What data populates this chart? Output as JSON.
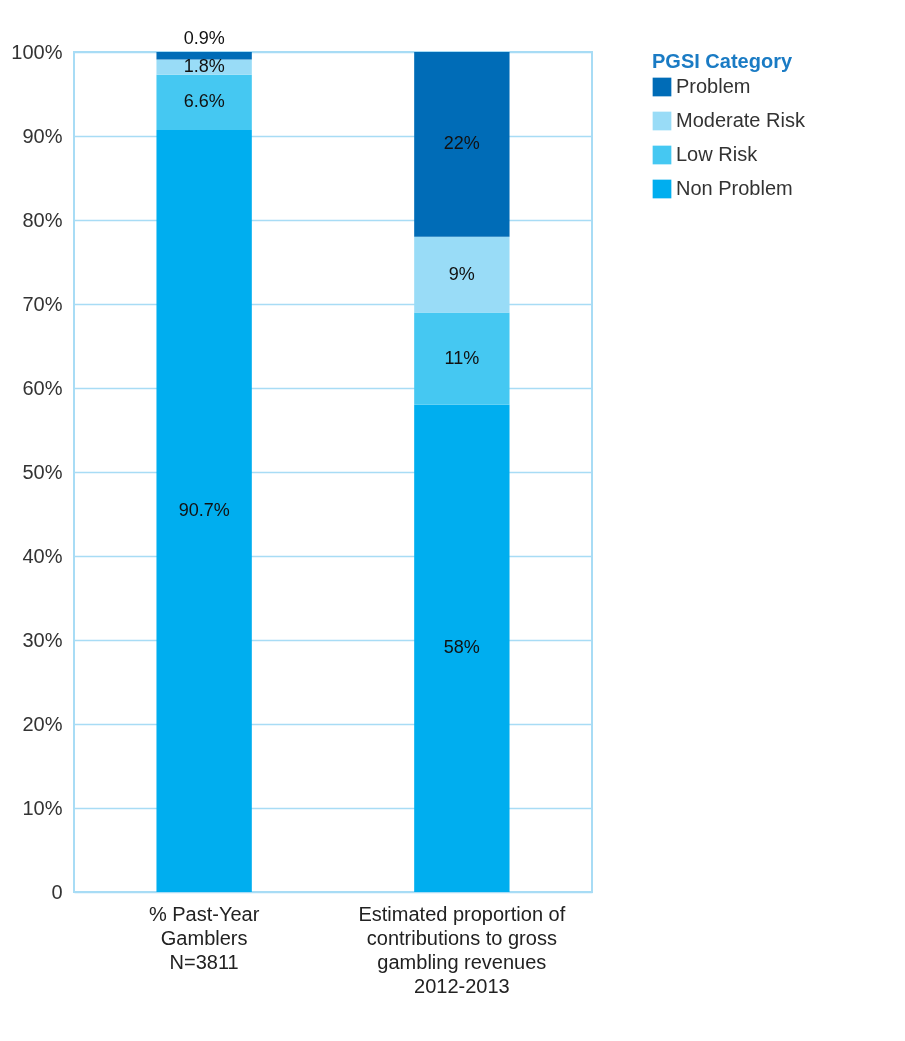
{
  "chart_data": {
    "type": "bar",
    "stacked": true,
    "categories": [
      "% Past-Year\nGamblers\nN=3811",
      "Estimated proportion of\ncontributions to gross\ngambling revenues\n2012-2013"
    ],
    "series": [
      {
        "name": "Non Problem",
        "color": "#00aeef",
        "values": [
          90.7,
          58
        ],
        "value_labels": [
          "90.7%",
          "58%"
        ]
      },
      {
        "name": "Low Risk",
        "color": "#45c8f2",
        "values": [
          6.6,
          11
        ],
        "value_labels": [
          "6.6%",
          "11%"
        ]
      },
      {
        "name": "Moderate Risk",
        "color": "#99dcf7",
        "values": [
          1.8,
          9
        ],
        "value_labels": [
          "1.8%",
          "9%"
        ]
      },
      {
        "name": "Problem",
        "color": "#006cb7",
        "values": [
          0.9,
          22
        ],
        "value_labels": [
          "0.9%",
          "22%"
        ]
      }
    ],
    "legend_title": "PGSI Category",
    "legend": "top right",
    "ylim": [
      0,
      100
    ],
    "yticks": [
      {
        "value": 0,
        "label": "0"
      },
      {
        "value": 10,
        "label": "10%"
      },
      {
        "value": 20,
        "label": "20%"
      },
      {
        "value": 30,
        "label": "30%"
      },
      {
        "value": 40,
        "label": "40%"
      },
      {
        "value": 50,
        "label": "50%"
      },
      {
        "value": 60,
        "label": "60%"
      },
      {
        "value": 70,
        "label": "70%"
      },
      {
        "value": 80,
        "label": "80%"
      },
      {
        "value": 90,
        "label": "90%"
      },
      {
        "value": 100,
        "label": "100%"
      }
    ],
    "grid": "y"
  }
}
